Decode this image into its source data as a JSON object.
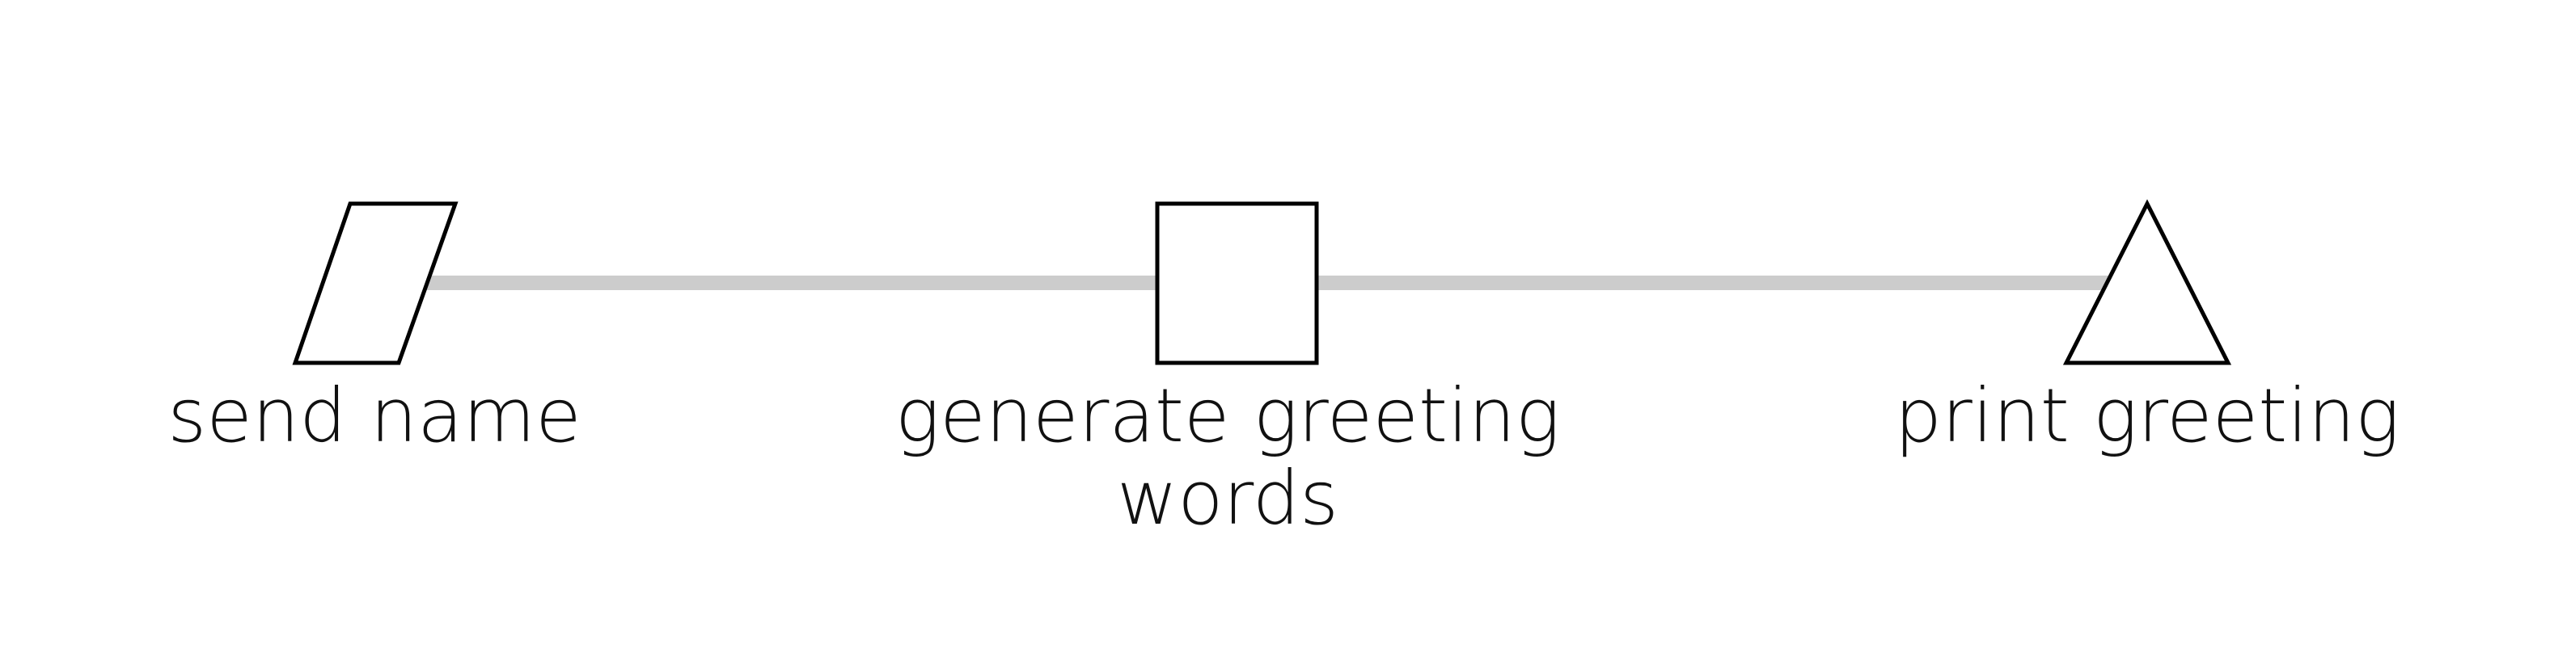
{
  "diagram": {
    "type": "flow",
    "connector_color": "#cccccc",
    "shape_stroke_color": "#000000",
    "nodes": [
      {
        "shape": "parallelogram",
        "label": "send name"
      },
      {
        "shape": "square",
        "label_line1": "generate greeting",
        "label_line2": "words"
      },
      {
        "shape": "triangle",
        "label": "print greeting"
      }
    ],
    "edges": [
      {
        "from": "send name",
        "to": "generate greeting words"
      },
      {
        "from": "generate greeting words",
        "to": "print greeting"
      }
    ]
  }
}
